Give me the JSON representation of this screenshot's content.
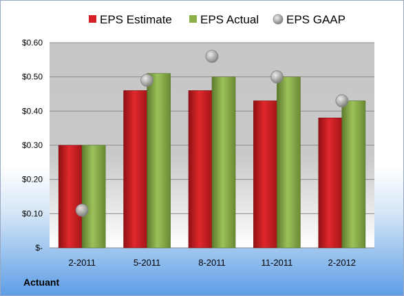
{
  "chart_data": {
    "type": "bar",
    "categories": [
      "2-2011",
      "5-2011",
      "8-2011",
      "11-2011",
      "2-2012"
    ],
    "series": [
      {
        "name": "EPS Estimate",
        "kind": "bar",
        "color": "#d42226",
        "values": [
          0.3,
          0.46,
          0.46,
          0.43,
          0.38
        ]
      },
      {
        "name": "EPS Actual",
        "kind": "bar",
        "color": "#8cb04a",
        "values": [
          0.3,
          0.51,
          0.5,
          0.5,
          0.43
        ]
      },
      {
        "name": "EPS GAAP",
        "kind": "scatter",
        "color": "#a8a8a8",
        "values": [
          0.11,
          0.49,
          0.56,
          0.5,
          0.43
        ]
      }
    ],
    "ylim": [
      0,
      0.6
    ],
    "yticks": [
      0,
      0.1,
      0.2,
      0.3,
      0.4,
      0.5,
      0.6
    ],
    "yticklabels": [
      "$-",
      "$0.10",
      "$0.20",
      "$0.30",
      "$0.40",
      "$0.50",
      "$0.60"
    ],
    "grid": true,
    "legend_position": "top"
  },
  "footer": {
    "company": "Actuant"
  }
}
